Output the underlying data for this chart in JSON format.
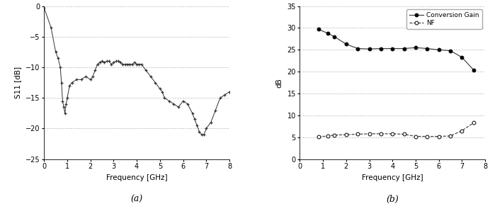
{
  "s11_freq": [
    0.0,
    0.3,
    0.5,
    0.6,
    0.7,
    0.75,
    0.8,
    0.85,
    0.9,
    0.95,
    1.0,
    1.1,
    1.2,
    1.4,
    1.6,
    1.8,
    2.0,
    2.1,
    2.2,
    2.3,
    2.4,
    2.5,
    2.6,
    2.7,
    2.8,
    2.9,
    3.0,
    3.1,
    3.2,
    3.3,
    3.4,
    3.5,
    3.6,
    3.7,
    3.8,
    3.9,
    4.0,
    4.1,
    4.2,
    4.4,
    4.6,
    4.8,
    5.0,
    5.1,
    5.2,
    5.4,
    5.6,
    5.8,
    6.0,
    6.2,
    6.4,
    6.5,
    6.6,
    6.7,
    6.8,
    6.9,
    7.0,
    7.2,
    7.4,
    7.6,
    7.8,
    8.0
  ],
  "s11_vals": [
    -0.3,
    -3.5,
    -7.5,
    -8.5,
    -10.0,
    -12.5,
    -15.5,
    -16.5,
    -17.5,
    -16.0,
    -15.0,
    -13.0,
    -12.5,
    -12.0,
    -12.0,
    -11.5,
    -12.0,
    -11.5,
    -10.5,
    -9.5,
    -9.2,
    -9.0,
    -9.2,
    -9.0,
    -9.0,
    -9.5,
    -9.2,
    -9.0,
    -9.0,
    -9.2,
    -9.5,
    -9.5,
    -9.5,
    -9.5,
    -9.5,
    -9.2,
    -9.5,
    -9.5,
    -9.5,
    -10.5,
    -11.5,
    -12.5,
    -13.5,
    -14.0,
    -15.0,
    -15.5,
    -16.0,
    -16.5,
    -15.5,
    -16.0,
    -17.5,
    -18.5,
    -19.5,
    -20.5,
    -21.0,
    -21.0,
    -20.0,
    -19.0,
    -17.0,
    -15.0,
    -14.5,
    -14.0
  ],
  "cg_freq": [
    0.8,
    1.2,
    1.5,
    2.0,
    2.5,
    3.0,
    3.5,
    4.0,
    4.5,
    5.0,
    5.5,
    6.0,
    6.5,
    7.0,
    7.5
  ],
  "cg_vals": [
    29.7,
    28.8,
    28.0,
    26.3,
    25.3,
    25.2,
    25.3,
    25.3,
    25.3,
    25.5,
    25.3,
    25.0,
    24.8,
    23.3,
    20.4
  ],
  "nf_freq": [
    0.8,
    1.2,
    1.5,
    2.0,
    2.5,
    3.0,
    3.5,
    4.0,
    4.5,
    5.0,
    5.5,
    6.0,
    6.5,
    7.0,
    7.5
  ],
  "nf_vals": [
    5.1,
    5.3,
    5.5,
    5.6,
    5.7,
    5.8,
    5.8,
    5.8,
    5.7,
    5.2,
    5.2,
    5.2,
    5.3,
    6.5,
    8.3
  ],
  "s11_xlabel": "Frequency [GHz]",
  "s11_ylabel": "S11 [dB]",
  "cg_xlabel": "Frequency [GHz]",
  "cg_ylabel": "dB",
  "label_a": "(a)",
  "label_b": "(b)",
  "legend_cg": "Conversion Gain",
  "legend_nf": "NF",
  "s11_xlim": [
    0,
    8
  ],
  "s11_ylim": [
    -25,
    0
  ],
  "s11_yticks": [
    0,
    -5,
    -10,
    -15,
    -20,
    -25
  ],
  "cg_xlim": [
    0,
    8
  ],
  "cg_ylim": [
    0,
    35
  ],
  "cg_yticks": [
    0,
    5,
    10,
    15,
    20,
    25,
    30,
    35
  ],
  "line_color": "#333333",
  "bg_color": "#ffffff"
}
